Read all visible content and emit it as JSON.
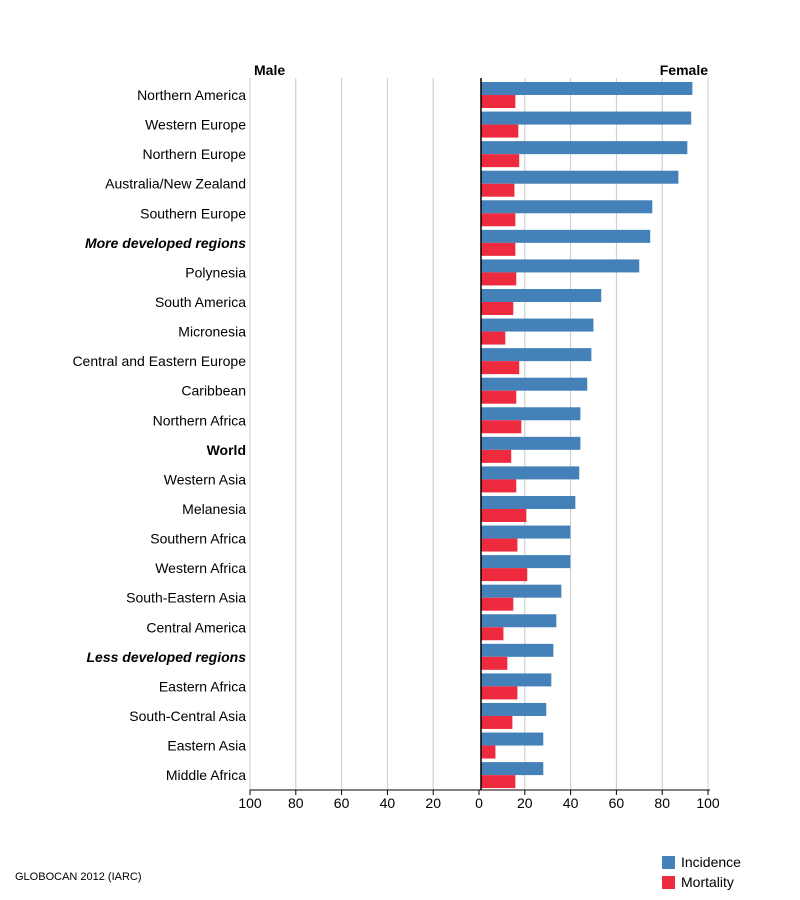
{
  "chart_data": {
    "type": "bar",
    "orientation": "horizontal",
    "left_header": "Male",
    "right_header": "Female",
    "xlim_left": [
      100,
      0
    ],
    "xlim_right": [
      0,
      100
    ],
    "xticks": [
      "100",
      "80",
      "60",
      "40",
      "20",
      "0",
      "20",
      "40",
      "60",
      "80",
      "100"
    ],
    "grid": true,
    "legend_position": "bottom-right",
    "categories": [
      "Northern America",
      "Western Europe",
      "Northern Europe",
      "Australia/New Zealand",
      "Southern Europe",
      "More developed regions",
      "Polynesia",
      "South America",
      "Micronesia",
      "Central and Eastern Europe",
      "Caribbean",
      "Northern Africa",
      "World",
      "Western Asia",
      "Melanesia",
      "Southern Africa",
      "Western Africa",
      "South-Eastern Asia",
      "Central America",
      "Less developed regions",
      "Eastern Africa",
      "South-Central Asia",
      "Eastern Asia",
      "Middle Africa"
    ],
    "emphasized": [
      "More developed regions",
      "World",
      "Less developed regions"
    ],
    "italic": [
      "More developed regions",
      "Less developed regions"
    ],
    "series": [
      {
        "name": "Incidence",
        "color": "#4581b9",
        "side": "female",
        "values": [
          92.3,
          91.8,
          90.1,
          86.2,
          74.8,
          73.9,
          69.1,
          52.5,
          49.1,
          48.2,
          46.4,
          43.4,
          43.4,
          42.9,
          41.2,
          39.0,
          39.0,
          35.1,
          32.9,
          31.6,
          30.7,
          28.5,
          27.2,
          27.2
        ]
      },
      {
        "name": "Mortality",
        "color": "#ee2a3f",
        "side": "female",
        "values": [
          15.0,
          16.3,
          16.7,
          14.6,
          15.0,
          15.0,
          15.4,
          14.1,
          10.6,
          16.7,
          15.4,
          17.6,
          13.2,
          15.4,
          19.8,
          15.9,
          20.2,
          14.1,
          9.8,
          11.5,
          15.9,
          13.7,
          6.3,
          15.0
        ]
      }
    ]
  },
  "footer": "GLOBOCAN 2012 (IARC)"
}
